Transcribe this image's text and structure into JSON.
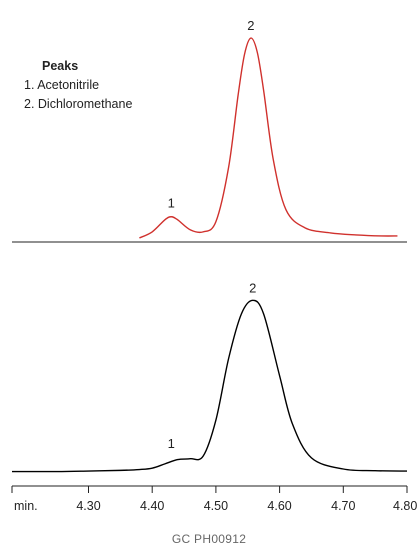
{
  "chart_data": [
    {
      "type": "line",
      "panel": "top",
      "legend": {
        "title": "Peaks",
        "items": [
          "1.  Acetonitrile",
          "2.  Dichloromethane"
        ],
        "placement": "top-left"
      },
      "peak_labels": [
        {
          "text": "1",
          "x": 4.43,
          "y": 0.12
        },
        {
          "text": "2",
          "x": 4.555,
          "y": 1.0
        }
      ],
      "series": [
        {
          "color": "#d0312d",
          "x": [
            4.38,
            4.4,
            4.42,
            4.43,
            4.44,
            4.46,
            4.48,
            4.5,
            4.52,
            4.535,
            4.545,
            4.555,
            4.565,
            4.575,
            4.59,
            4.61,
            4.64,
            4.68,
            4.72,
            4.76,
            4.785
          ],
          "y": [
            0.01,
            0.04,
            0.1,
            0.115,
            0.1,
            0.05,
            0.04,
            0.09,
            0.36,
            0.72,
            0.92,
            1.0,
            0.93,
            0.74,
            0.4,
            0.15,
            0.06,
            0.035,
            0.025,
            0.02,
            0.02
          ]
        }
      ],
      "xlim": [
        4.18,
        4.82
      ],
      "ylim": [
        -0.02,
        1.06
      ]
    },
    {
      "type": "line",
      "panel": "bottom",
      "peak_labels": [
        {
          "text": "1",
          "x": 4.43,
          "y": 0.09
        },
        {
          "text": "2",
          "x": 4.558,
          "y": 1.0
        }
      ],
      "series": [
        {
          "color": "#000000",
          "x": [
            4.18,
            4.25,
            4.3,
            4.35,
            4.38,
            4.4,
            4.42,
            4.44,
            4.46,
            4.48,
            4.5,
            4.52,
            4.54,
            4.558,
            4.575,
            4.6,
            4.62,
            4.65,
            4.7,
            4.75,
            4.8
          ],
          "y": [
            0.0,
            0.0,
            0.003,
            0.007,
            0.012,
            0.02,
            0.045,
            0.07,
            0.075,
            0.09,
            0.3,
            0.66,
            0.92,
            1.0,
            0.92,
            0.56,
            0.28,
            0.08,
            0.015,
            0.005,
            0.003
          ]
        }
      ],
      "xlim": [
        4.18,
        4.8
      ],
      "ylim": [
        -0.02,
        1.06
      ],
      "x_axis": {
        "unit_label": "min.",
        "ticks": [
          4.3,
          4.4,
          4.5,
          4.6,
          4.7
        ],
        "tick_labels": [
          "4.30",
          "4.40",
          "4.50",
          "4.60",
          "4.70"
        ],
        "end_label": "4.80"
      }
    }
  ],
  "footer": {
    "code": "GC  PH00912"
  }
}
